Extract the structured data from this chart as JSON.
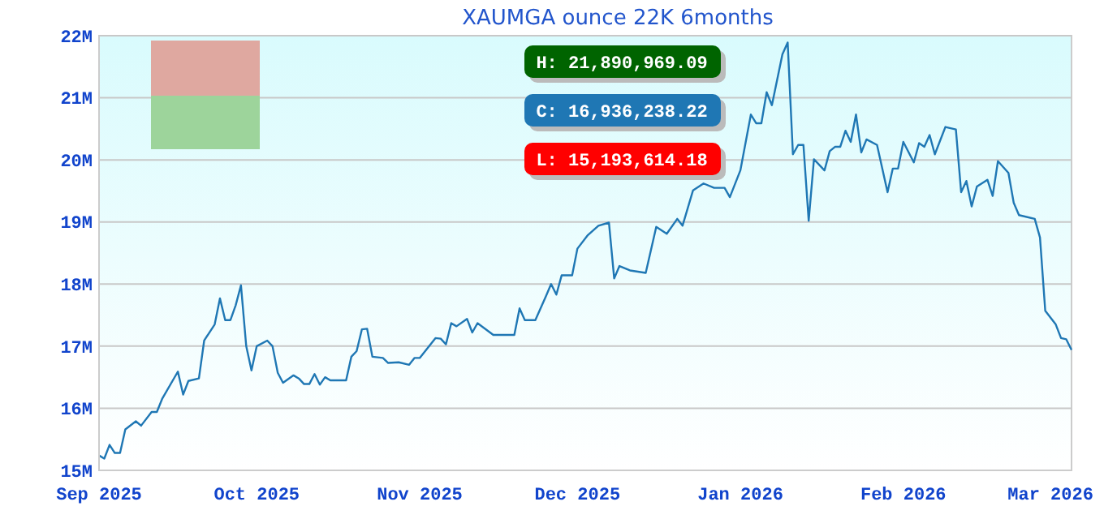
{
  "chart_data": {
    "type": "line",
    "title": "XAUMGA ounce 22K 6months",
    "x": [
      "2025-09-01",
      "2025-09-02",
      "2025-09-03",
      "2025-09-04",
      "2025-09-05",
      "2025-09-06",
      "2025-09-08",
      "2025-09-09",
      "2025-09-11",
      "2025-09-12",
      "2025-09-13",
      "2025-09-16",
      "2025-09-17",
      "2025-09-18",
      "2025-09-20",
      "2025-09-21",
      "2025-09-23",
      "2025-09-24",
      "2025-09-25",
      "2025-09-26",
      "2025-09-27",
      "2025-09-28",
      "2025-09-29",
      "2025-09-30",
      "2025-10-01",
      "2025-10-03",
      "2025-10-04",
      "2025-10-05",
      "2025-10-06",
      "2025-10-08",
      "2025-10-09",
      "2025-10-10",
      "2025-10-11",
      "2025-10-12",
      "2025-10-13",
      "2025-10-14",
      "2025-10-15",
      "2025-10-18",
      "2025-10-19",
      "2025-10-20",
      "2025-10-21",
      "2025-10-22",
      "2025-10-23",
      "2025-10-25",
      "2025-10-26",
      "2025-10-28",
      "2025-10-30",
      "2025-10-31",
      "2025-11-01",
      "2025-11-04",
      "2025-11-05",
      "2025-11-06",
      "2025-11-07",
      "2025-11-08",
      "2025-11-10",
      "2025-11-11",
      "2025-11-12",
      "2025-11-15",
      "2025-11-17",
      "2025-11-19",
      "2025-11-20",
      "2025-11-21",
      "2025-11-23",
      "2025-11-25",
      "2025-11-26",
      "2025-11-27",
      "2025-11-28",
      "2025-11-30",
      "2025-12-01",
      "2025-12-03",
      "2025-12-05",
      "2025-12-07",
      "2025-12-08",
      "2025-12-09",
      "2025-12-11",
      "2025-12-14",
      "2025-12-16",
      "2025-12-18",
      "2025-12-20",
      "2025-12-21",
      "2025-12-23",
      "2025-12-25",
      "2025-12-27",
      "2025-12-29",
      "2025-12-30",
      "2026-01-01",
      "2026-01-03",
      "2026-01-04",
      "2026-01-05",
      "2026-01-06",
      "2026-01-07",
      "2026-01-09",
      "2026-01-10",
      "2026-01-11",
      "2026-01-12",
      "2026-01-13",
      "2026-01-14",
      "2026-01-15",
      "2026-01-17",
      "2026-01-18",
      "2026-01-19",
      "2026-01-20",
      "2026-01-21",
      "2026-01-22",
      "2026-01-23",
      "2026-01-24",
      "2026-01-25",
      "2026-01-27",
      "2026-01-29",
      "2026-01-30",
      "2026-01-31",
      "2026-02-01",
      "2026-02-03",
      "2026-02-04",
      "2026-02-05",
      "2026-02-06",
      "2026-02-07",
      "2026-02-09",
      "2026-02-11",
      "2026-02-12",
      "2026-02-13",
      "2026-02-14",
      "2026-02-15",
      "2026-02-17",
      "2026-02-18",
      "2026-02-19",
      "2026-02-21",
      "2026-02-22",
      "2026-02-23",
      "2026-02-26",
      "2026-02-27",
      "2026-02-28",
      "2026-03-02",
      "2026-03-03",
      "2026-03-04",
      "2026-03-05"
    ],
    "series": [
      {
        "color": "#1f77b4",
        "values": [
          15.24,
          15.19,
          15.41,
          15.28,
          15.28,
          15.66,
          15.79,
          15.72,
          15.94,
          15.94,
          16.15,
          16.59,
          16.22,
          16.44,
          16.48,
          17.09,
          17.35,
          17.77,
          17.42,
          17.42,
          17.66,
          17.98,
          17.0,
          16.61,
          17.0,
          17.09,
          17.0,
          16.57,
          16.41,
          16.53,
          16.48,
          16.39,
          16.39,
          16.55,
          16.38,
          16.5,
          16.45,
          16.45,
          16.83,
          16.92,
          17.27,
          17.28,
          16.83,
          16.81,
          16.73,
          16.74,
          16.7,
          16.81,
          16.81,
          17.13,
          17.12,
          17.03,
          17.37,
          17.32,
          17.44,
          17.22,
          17.37,
          17.18,
          17.18,
          17.18,
          17.61,
          17.42,
          17.42,
          17.8,
          18.0,
          17.83,
          18.14,
          18.14,
          18.57,
          18.79,
          18.94,
          18.99,
          18.09,
          18.29,
          18.22,
          18.18,
          18.92,
          18.81,
          19.05,
          18.94,
          19.51,
          19.62,
          19.55,
          19.55,
          19.4,
          19.83,
          20.73,
          20.59,
          20.59,
          21.09,
          20.88,
          21.7,
          21.89,
          20.09,
          20.24,
          20.24,
          19.02,
          20.01,
          19.83,
          20.14,
          20.21,
          20.21,
          20.47,
          20.29,
          20.73,
          20.12,
          20.33,
          20.24,
          19.48,
          19.86,
          19.86,
          20.29,
          19.96,
          20.27,
          20.21,
          20.4,
          20.09,
          20.53,
          20.49,
          19.48,
          19.66,
          19.25,
          19.57,
          19.68,
          19.42,
          19.98,
          19.79,
          19.31,
          19.11,
          19.05,
          18.75,
          17.57,
          17.35,
          17.13,
          17.11,
          16.94
        ]
      }
    ],
    "xlim": [
      "2025-09-01",
      "2026-03-05"
    ],
    "xticks": [
      {
        "value": "2025-09-01",
        "label": "Sep 2025"
      },
      {
        "value": "2025-10-01",
        "label": "Oct 2025"
      },
      {
        "value": "2025-11-01",
        "label": "Nov 2025"
      },
      {
        "value": "2025-12-01",
        "label": "Dec 2025"
      },
      {
        "value": "2026-01-01",
        "label": "Jan 2026"
      },
      {
        "value": "2026-02-01",
        "label": "Feb 2026"
      },
      {
        "value": "2026-03-01",
        "label": "Mar 2026"
      }
    ],
    "ylim": [
      15,
      22
    ],
    "yticks": [
      {
        "value": 15,
        "label": "15M"
      },
      {
        "value": 16,
        "label": "16M"
      },
      {
        "value": 17,
        "label": "17M"
      },
      {
        "value": 18,
        "label": "18M"
      },
      {
        "value": 19,
        "label": "19M"
      },
      {
        "value": 20,
        "label": "20M"
      },
      {
        "value": 21,
        "label": "21M"
      },
      {
        "value": 22,
        "label": "22M"
      }
    ],
    "grid": "y",
    "marker": "none",
    "line_style": "solid",
    "annotations": [
      "H: 21,890,969.09",
      "C: 16,936,238.22",
      "L: 15,193,614.18"
    ]
  }
}
